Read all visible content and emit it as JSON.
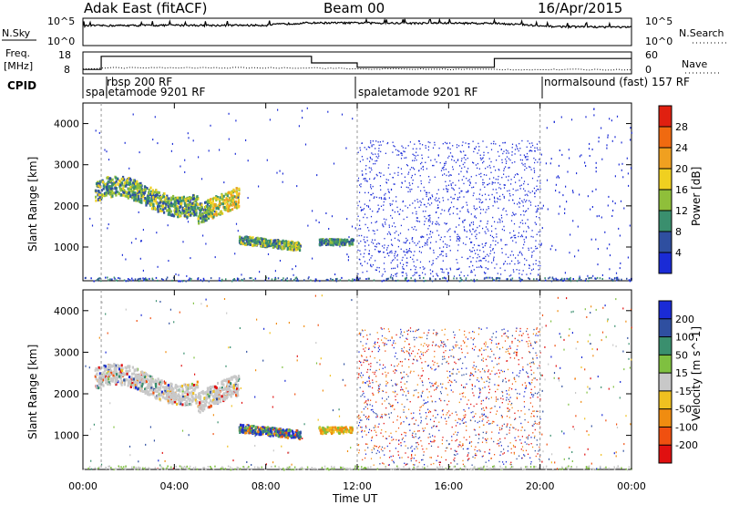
{
  "header": {
    "station": "Adak East (fitACF)",
    "beam": "Beam 00",
    "date": "16/Apr/2015"
  },
  "noise_panel": {
    "left_label": "N.Sky",
    "right_label": "N.Search",
    "left_ticks": [
      "10^5",
      "10^0"
    ],
    "right_ticks": [
      "10^5",
      "10^0"
    ]
  },
  "freq_panel": {
    "left_label_1": "Freq.",
    "left_label_2": "[MHz]",
    "right_label": "Nave",
    "left_ticks": [
      "18",
      "8"
    ],
    "right_ticks": [
      "60",
      "0"
    ]
  },
  "cpid": {
    "label": "CPID",
    "segments": [
      {
        "name": "spaletamode 9201 RF",
        "start_h": 0,
        "end_h": 12
      },
      {
        "name": "rbsp 200 RF",
        "start_h": 0.8,
        "end_h": 0.8
      },
      {
        "name": "spaletamode 9201 RF",
        "start_h": 12,
        "end_h": 20
      },
      {
        "name": "normalsound (fast) 157 RF",
        "start_h": 20,
        "end_h": 24
      }
    ],
    "labels": [
      "spaletamode 9201 RF",
      "rbsp 200 RF",
      "spaletamode 9201 RF",
      "normalsound (fast) 157 RF"
    ]
  },
  "axes": {
    "ylabel": "Slant Range [km]",
    "xlabel": "Time UT",
    "x_ticks": [
      "00:00",
      "04:00",
      "08:00",
      "12:00",
      "16:00",
      "20:00",
      "00:00"
    ],
    "y_ticks": [
      "1000",
      "2000",
      "3000",
      "4000"
    ]
  },
  "power_colorbar": {
    "label": "Power [dB]",
    "ticks": [
      "4",
      "8",
      "12",
      "16",
      "20",
      "24",
      "28"
    ],
    "colors": [
      "#1a2bd6",
      "#2f4fa0",
      "#3a8f6e",
      "#8fbf3a",
      "#f0d020",
      "#f0a020",
      "#f06a10",
      "#e02010"
    ]
  },
  "velocity_colorbar": {
    "label": "Velocity [m s^-1]",
    "ticks": [
      "200",
      "100",
      "50",
      "15",
      "-15",
      "-50",
      "-100",
      "-200"
    ],
    "colors": [
      "#1a2bd6",
      "#2f4fa0",
      "#3a8f6e",
      "#7fc040",
      "#c8c8c8",
      "#f0c020",
      "#f08c10",
      "#f05010",
      "#e01010"
    ]
  },
  "chart_data": [
    {
      "type": "line",
      "title": "",
      "xlabel": "",
      "ylabel": "",
      "x_range_hours": [
        0,
        24
      ],
      "series": [
        {
          "name": "N.Sky",
          "x": [
            0,
            2,
            4,
            6,
            8,
            10,
            12,
            14,
            16,
            18,
            20,
            22,
            24
          ],
          "y": [
            8000,
            9000,
            10000,
            9500,
            10000,
            30000,
            28000,
            25000,
            26000,
            24000,
            6000,
            5000,
            4000
          ]
        },
        {
          "name": "N.Search",
          "x": [
            0,
            24
          ],
          "y": [
            1,
            1
          ]
        }
      ]
    },
    {
      "type": "line",
      "title": "",
      "x_range_hours": [
        0,
        24
      ],
      "series": [
        {
          "name": "Freq. [MHz]",
          "x": [
            0,
            0.8,
            0.8,
            10,
            10,
            12,
            12,
            18,
            18,
            24
          ],
          "y": [
            10,
            10,
            16,
            16,
            13,
            13,
            11,
            11,
            15,
            15
          ]
        },
        {
          "name": "Nave",
          "x": [
            0,
            1,
            10,
            12,
            20,
            24
          ],
          "y": [
            12,
            15,
            15,
            12,
            10,
            10
          ]
        }
      ]
    },
    {
      "type": "heatmap",
      "title": "",
      "xlabel": "Time UT",
      "ylabel": "Slant Range [km]",
      "x_range_hours": [
        0,
        24
      ],
      "ylim": [
        180,
        4500
      ],
      "colorbar": "Power [dB]",
      "crange": [
        0,
        30
      ]
    },
    {
      "type": "heatmap",
      "title": "",
      "xlabel": "Time UT",
      "ylabel": "Slant Range [km]",
      "x_range_hours": [
        0,
        24
      ],
      "ylim": [
        180,
        4500
      ],
      "colorbar": "Velocity [m s^-1]",
      "crange": [
        -200,
        200
      ]
    }
  ]
}
